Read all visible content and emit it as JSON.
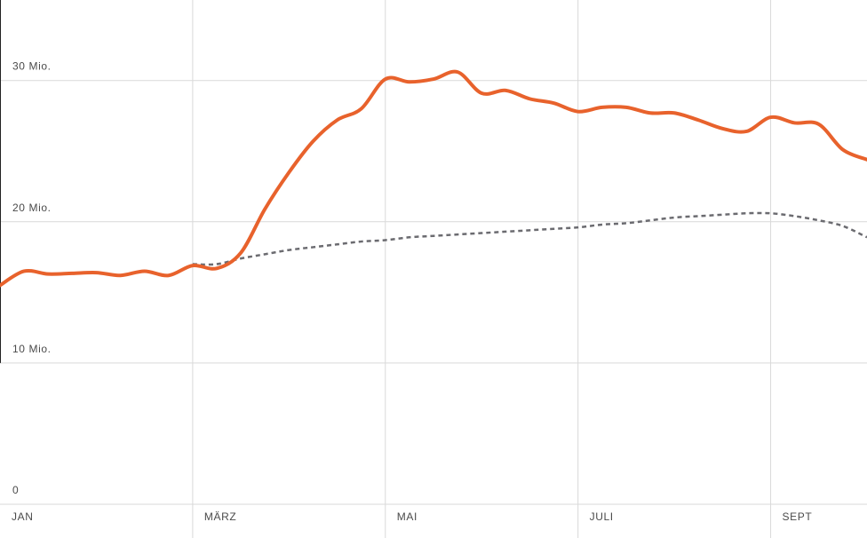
{
  "chart_data": {
    "type": "line",
    "categories": [
      "JAN",
      null,
      null,
      null,
      null,
      null,
      null,
      null,
      "MÄRZ",
      null,
      null,
      null,
      null,
      null,
      null,
      null,
      "MAI",
      null,
      null,
      null,
      null,
      null,
      null,
      null,
      "JULI",
      null,
      null,
      null,
      null,
      null,
      null,
      null,
      "SEPT",
      null,
      null,
      null,
      null
    ],
    "series": [
      {
        "color": "#e8622c",
        "line_style": "solid",
        "values": [
          15.5,
          16.5,
          16.3,
          16.35,
          16.4,
          16.2,
          16.5,
          16.2,
          16.9,
          16.7,
          17.8,
          20.9,
          23.5,
          25.7,
          27.2,
          28.0,
          30.1,
          29.9,
          30.1,
          30.6,
          29.1,
          29.3,
          28.7,
          28.4,
          27.8,
          28.1,
          28.1,
          27.7,
          27.7,
          27.2,
          26.6,
          26.4,
          27.4,
          27.0,
          26.9,
          25.1,
          24.4
        ]
      },
      {
        "color": "#6b6b70",
        "line_style": "dashed",
        "values": [
          null,
          null,
          null,
          null,
          null,
          null,
          null,
          null,
          17.0,
          17.0,
          17.4,
          17.7,
          18.0,
          18.2,
          18.4,
          18.6,
          18.7,
          18.9,
          19.0,
          19.1,
          19.2,
          19.3,
          19.4,
          19.5,
          19.6,
          19.8,
          19.9,
          20.1,
          20.3,
          20.4,
          20.5,
          20.6,
          20.6,
          20.4,
          20.1,
          19.7,
          18.9
        ]
      }
    ],
    "ylim": [
      0,
      35.7
    ],
    "yticks": [
      0,
      {
        "value": 10,
        "label": "10 Mio."
      },
      {
        "value": 20,
        "label": "20 Mio."
      },
      {
        "value": 30,
        "label": "30 Mio."
      }
    ],
    "grid": true
  }
}
